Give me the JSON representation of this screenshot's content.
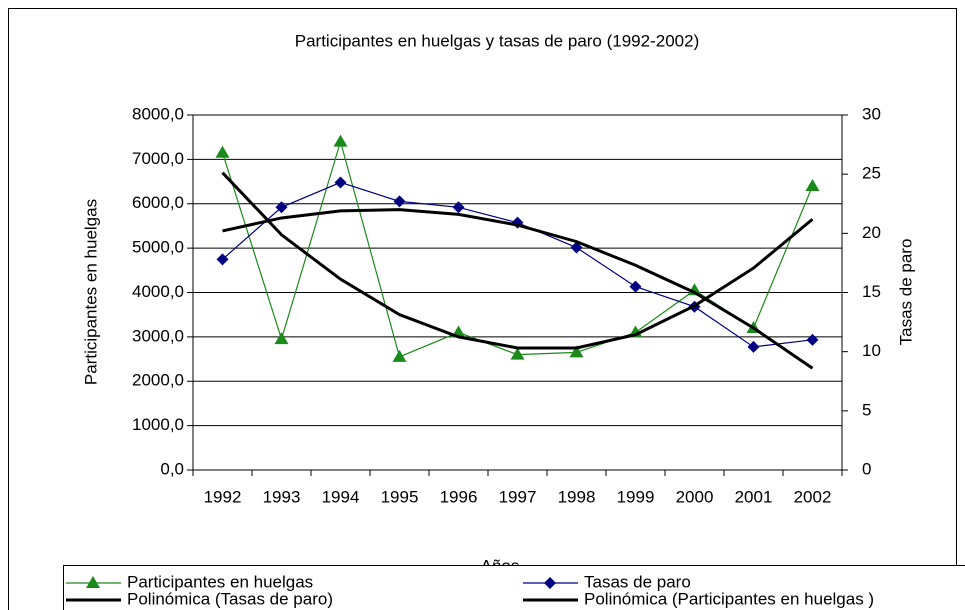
{
  "chart_data": {
    "type": "line",
    "title": "Participantes en huelgas y tasas de paro (1992-2002)",
    "x_label": "Años",
    "y_label": "Participantes en huelgas",
    "y2_label": "Tasas de paro",
    "categories": [
      "1992",
      "1993",
      "1994",
      "1995",
      "1996",
      "1997",
      "1998",
      "1999",
      "2000",
      "2001",
      "2002"
    ],
    "ylim": [
      0,
      8000
    ],
    "yticks": [
      {
        "value": 0,
        "label": "0,0"
      },
      {
        "value": 1000,
        "label": "1000,0"
      },
      {
        "value": 2000,
        "label": "2000,0"
      },
      {
        "value": 3000,
        "label": "3000,0"
      },
      {
        "value": 4000,
        "label": "4000,0"
      },
      {
        "value": 5000,
        "label": "5000,0"
      },
      {
        "value": 6000,
        "label": "6000,0"
      },
      {
        "value": 7000,
        "label": "7000,0"
      },
      {
        "value": 8000,
        "label": "8000,0"
      }
    ],
    "y2lim": [
      0,
      30
    ],
    "y2ticks": [
      0,
      5,
      10,
      15,
      20,
      25,
      30
    ],
    "grid": true,
    "series": [
      {
        "name": "Participantes en huelgas",
        "color": "#1a8a1a",
        "marker": "triangle",
        "axis": "y",
        "values": [
          7150,
          2950,
          7400,
          2550,
          3100,
          2600,
          2650,
          3100,
          4050,
          3200,
          6400
        ]
      },
      {
        "name": "Tasas de paro",
        "color": "#000080",
        "marker": "diamond",
        "axis": "y2",
        "values": [
          17.8,
          22.2,
          24.3,
          22.7,
          22.2,
          20.9,
          18.8,
          15.5,
          13.8,
          10.4,
          11.0
        ]
      },
      {
        "name": "Polinómica (Tasas de paro)",
        "color": "#000000",
        "marker": null,
        "axis": "y2",
        "values": [
          20.2,
          21.3,
          21.9,
          22.0,
          21.6,
          20.7,
          19.3,
          17.3,
          15.0,
          12.0,
          8.6
        ]
      },
      {
        "name": "Polinómica (Participantes en huelgas )",
        "color": "#000000",
        "marker": null,
        "axis": "y",
        "values": [
          6700,
          5300,
          4300,
          3500,
          3000,
          2750,
          2750,
          3050,
          3700,
          4550,
          5650
        ]
      }
    ]
  }
}
